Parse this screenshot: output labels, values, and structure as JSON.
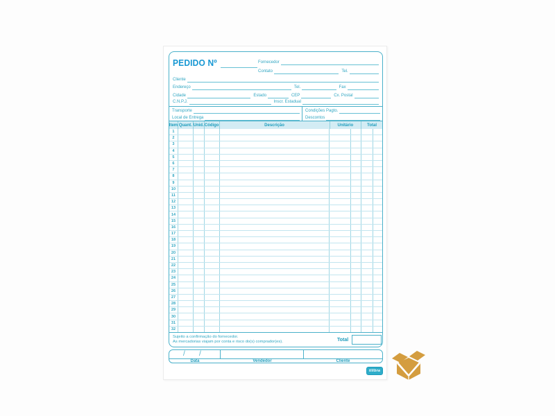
{
  "colors": {
    "title_blue": "#1697d3",
    "teal_text": "#2fa6c2",
    "teal_border": "#49b0c9",
    "table_header_bg": "#d3ecf4",
    "logo_bg": "#2fadc9",
    "box_icon_orange": "#d49d3f",
    "paper": "#ffffff"
  },
  "form": {
    "title": "PEDIDO Nº",
    "supplier_block": {
      "fornecedor": "Fornecedor",
      "contato": "Contato",
      "tel": "Tel."
    },
    "customer_block": {
      "cliente": "Cliente",
      "endereco": "Endereço",
      "tel": "Tel.",
      "fax": "Fax",
      "cidade": "Cidade",
      "estado": "Estado",
      "cep": "CEP",
      "cx_postal": "Cx. Postal",
      "cnpj": "C.N.P.J.",
      "inscr_estadual": "Inscr. Estadual"
    },
    "shipping_block": {
      "transporte": "Transporte",
      "local_entrega": "Local de Entrega",
      "condicoes_pagto": "Condições Pagto.",
      "descontos": "Descontos"
    }
  },
  "table": {
    "headers": {
      "item": "Item",
      "quant": "Quant.",
      "unid": "Unid.",
      "codigo": "Código",
      "descricao": "Descrição",
      "unitario": "Unitário",
      "total": "Total"
    },
    "row_numbers": [
      1,
      2,
      3,
      4,
      5,
      6,
      7,
      8,
      9,
      10,
      11,
      12,
      13,
      14,
      15,
      16,
      17,
      18,
      19,
      20,
      21,
      22,
      23,
      24,
      25,
      26,
      27,
      28,
      29,
      30,
      31,
      32
    ]
  },
  "notes": {
    "line1": "Sujeito a confirmação do fornecedor.",
    "line2": "As mercadorias viajam por conta e risco do(s) comprador(es).",
    "total_label": "Total"
  },
  "signature": {
    "data": "Data",
    "vendedor": "Vendedor",
    "cliente": "Cliente",
    "date_separator": "/"
  },
  "brand": {
    "logo_text": "tilibra"
  },
  "icons": {
    "watermark": "open-box-icon"
  }
}
